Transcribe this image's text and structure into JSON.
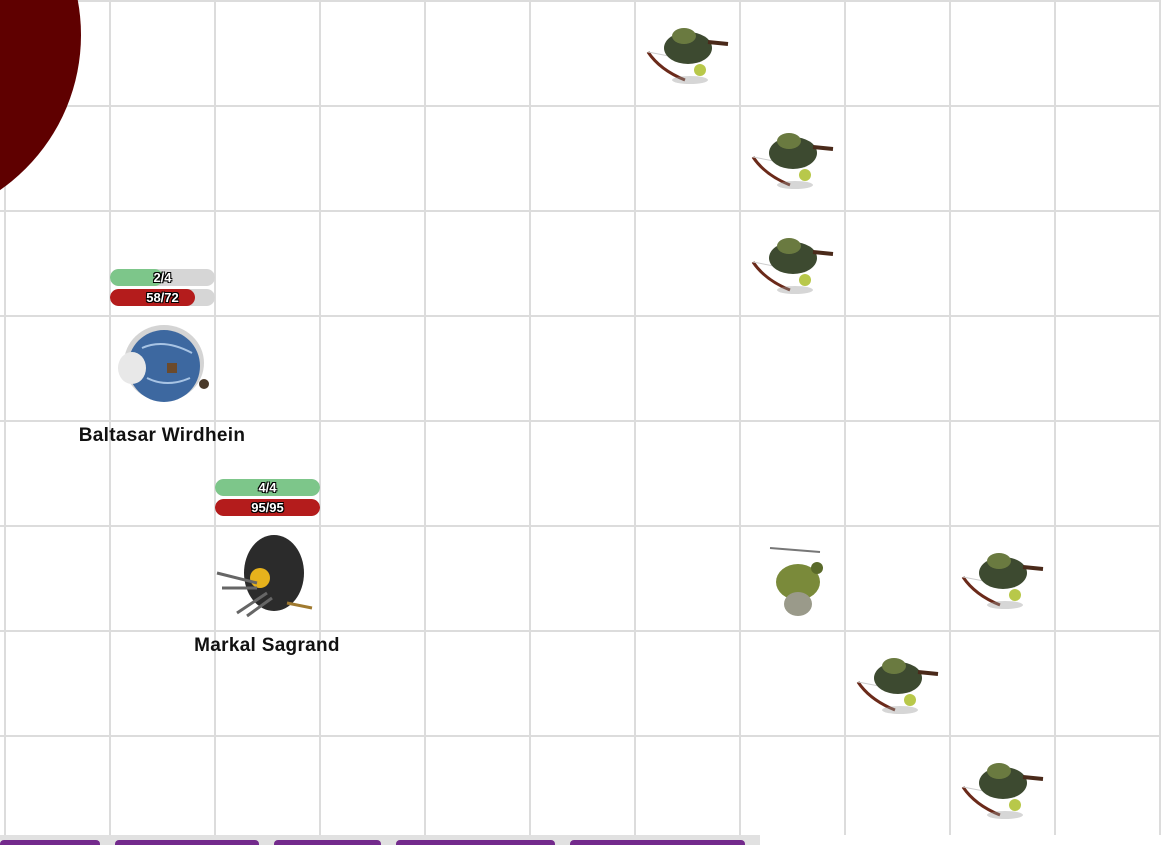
{
  "map": {
    "grid_color": "#dcdcdc",
    "aura_color": "#5f0000"
  },
  "characters": [
    {
      "name": "Baltasar Wirdhein",
      "bar1": {
        "label": "2/4",
        "value": 2,
        "max": 4,
        "color": "#7dc68a"
      },
      "bar2": {
        "label": "58/72",
        "value": 58,
        "max": 72,
        "color": "#b41c1c"
      },
      "token": "wizard-token"
    },
    {
      "name": "Markal Sagrand",
      "bar1": {
        "label": "4/4",
        "value": 4,
        "max": 4,
        "color": "#7dc68a"
      },
      "bar2": {
        "label": "95/95",
        "value": 95,
        "max": 95,
        "color": "#b41c1c"
      },
      "token": "rogue-token"
    }
  ],
  "enemies": [
    "goblin-archer",
    "goblin-archer",
    "goblin-archer",
    "goblin-warrior",
    "goblin-archer",
    "goblin-archer",
    "goblin-archer"
  ],
  "toolbar": {
    "button_color": "#732a8c",
    "button_count": 5
  }
}
